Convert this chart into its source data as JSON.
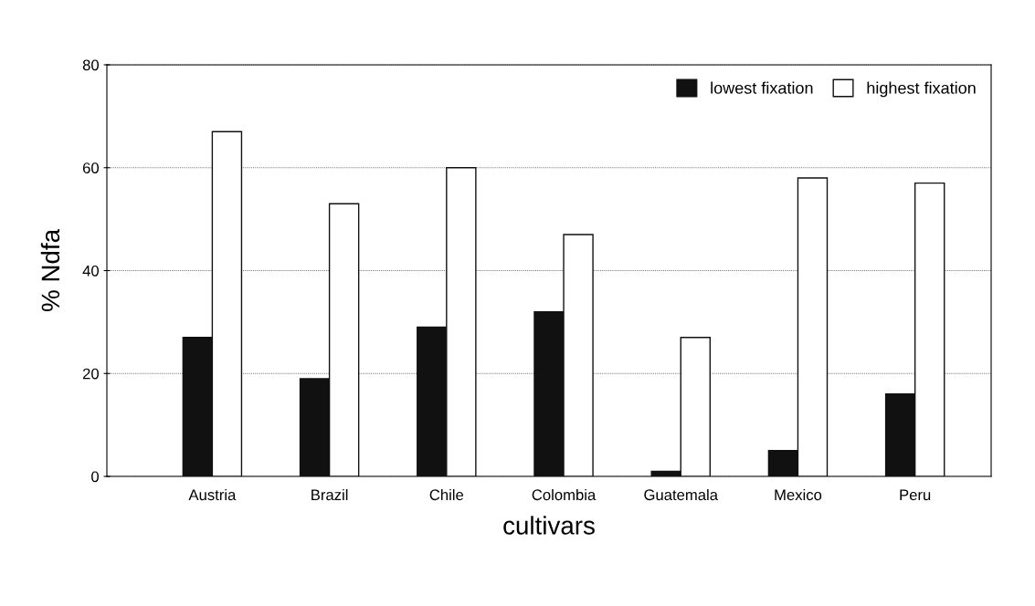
{
  "chart_data": {
    "type": "bar",
    "xlabel": "cultivars",
    "ylabel": "% Ndfa",
    "categories": [
      "Austria",
      "Brazil",
      "Chile",
      "Colombia",
      "Guatemala",
      "Mexico",
      "Peru"
    ],
    "series": [
      {
        "name": "lowest fixation",
        "color": "#111111",
        "values": [
          27,
          19,
          29,
          32,
          1,
          5,
          16
        ]
      },
      {
        "name": "highest fixation",
        "color": "#ffffff",
        "values": [
          67,
          53,
          60,
          47,
          27,
          58,
          57
        ]
      }
    ],
    "ylim": [
      0,
      80
    ],
    "yticks": [
      0,
      20,
      40,
      60,
      80
    ],
    "grid": "y",
    "legend": "top right"
  }
}
